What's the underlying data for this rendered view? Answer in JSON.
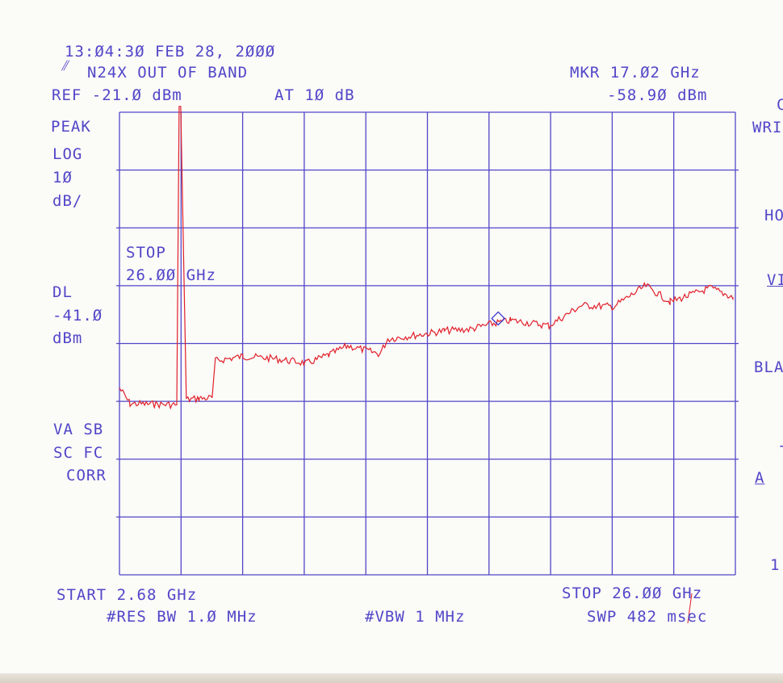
{
  "header": {
    "timestamp": "13:Ø4:3Ø FEB 28, 2ØØØ",
    "logo": "hp",
    "title": "N24X OUT OF BAND",
    "ref_level": "REF -21.Ø dBm",
    "attenuation": "AT 1Ø dB",
    "marker_freq": "MKR 17.Ø2 GHz",
    "marker_level": "-58.9Ø dBm"
  },
  "left_labels": {
    "detector": "PEAK",
    "scale_mode": "LOG",
    "scale_value": "1Ø",
    "scale_unit": "dB/",
    "display_line_label": "DL",
    "display_line_value": "-41.Ø",
    "display_line_unit": "dBm",
    "status_1": "VA SB",
    "status_2": "SC FC",
    "status_3": "CORR"
  },
  "annotation": {
    "line1": "STOP",
    "line2": "26.ØØ GHz"
  },
  "footer": {
    "start": "START 2.68 GHz",
    "stop": "STOP 26.ØØ GHz",
    "rbw": "#RES BW 1.Ø MHz",
    "vbw": "#VBW 1 MHz",
    "sweep": "SWP 482 msec"
  },
  "right_labels": [
    "C",
    "WRI",
    "HO",
    "VI",
    "BLA",
    "-",
    "A",
    "1"
  ],
  "colors": {
    "ink": "#5246c8",
    "trace": "#e0202a",
    "marker": "#3a3ad0",
    "paper": "#fbfbf8"
  },
  "chart_data": {
    "type": "line",
    "x_unit": "GHz",
    "y_unit": "dBm",
    "xlim": [
      2.68,
      26.0
    ],
    "ylim": [
      -101,
      -21
    ],
    "x_divisions": 10,
    "y_divisions": 8,
    "grid": true,
    "reference_level": -21.0,
    "scale_db_per_div": 10,
    "display_line": -41.0,
    "series": [
      {
        "x": [
          2.68,
          3.08,
          4.0,
          4.85,
          4.94,
          5.0,
          5.21,
          5.7,
          6.19,
          6.31,
          7.35,
          8.5,
          9.79,
          10.6,
          11.32,
          12.54,
          12.84,
          14.0,
          14.98,
          16.0,
          16.87,
          17.5,
          18.95,
          20.17,
          21.39,
          22.61,
          23.53,
          25.05,
          25.91
        ],
        "y": [
          -68.7,
          -71.4,
          -71.5,
          -71.6,
          -20.0,
          -20.0,
          -70.7,
          -70.5,
          -70.4,
          -64.0,
          -63.2,
          -63.6,
          -64.4,
          -63.0,
          -61.4,
          -62.8,
          -60.2,
          -59.5,
          -58.8,
          -58.5,
          -57.5,
          -57.0,
          -57.9,
          -54.4,
          -54.6,
          -51.0,
          -53.8,
          -51.4,
          -53.0
        ]
      }
    ],
    "marker": {
      "x": 17.02,
      "y": -58.9
    }
  }
}
